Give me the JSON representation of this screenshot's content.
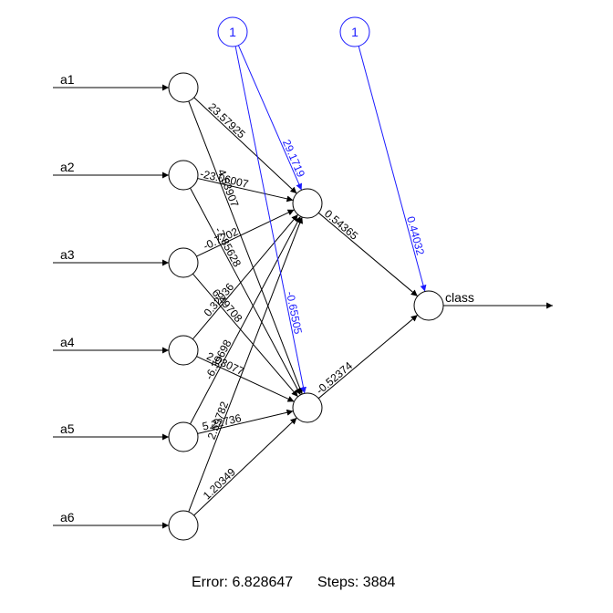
{
  "network": {
    "inputs": [
      "a1",
      "a2",
      "a3",
      "a4",
      "a5",
      "a6"
    ],
    "hidden": [
      "h1",
      "h2"
    ],
    "output": "class",
    "bias_label": "1",
    "weights_input_hidden": [
      {
        "from": "a1",
        "to": "h1",
        "label": "23.57925"
      },
      {
        "from": "a1",
        "to": "h2",
        "label": "4.53907"
      },
      {
        "from": "a2",
        "to": "h1",
        "label": "-23.06007"
      },
      {
        "from": "a2",
        "to": "h2",
        "label": "-7.85628"
      },
      {
        "from": "a3",
        "to": "h1",
        "label": "-0.7202"
      },
      {
        "from": "a3",
        "to": "h2",
        "label": "6.49708"
      },
      {
        "from": "a4",
        "to": "h1",
        "label": "0.32936"
      },
      {
        "from": "a4",
        "to": "h2",
        "label": "2.03077"
      },
      {
        "from": "a5",
        "to": "h1",
        "label": "-6.39698"
      },
      {
        "from": "a5",
        "to": "h2",
        "label": "5.22736"
      },
      {
        "from": "a6",
        "to": "h1",
        "label": "2.59782"
      },
      {
        "from": "a6",
        "to": "h2",
        "label": "1.20349"
      }
    ],
    "weights_hidden_output": [
      {
        "from": "h1",
        "label": "0.54365"
      },
      {
        "from": "h2",
        "label": "-0.52374"
      }
    ],
    "bias_weights": [
      {
        "to": "h1",
        "label": "29.1719"
      },
      {
        "to": "h2",
        "label": "-0.65505"
      },
      {
        "to": "output",
        "label": "0.44032"
      }
    ]
  },
  "footer": {
    "error_label": "Error: 6.828647",
    "steps_label": "Steps: 3884"
  },
  "colors": {
    "edge": "#000000",
    "bias": "#1a1aff",
    "node_fill": "#ffffff"
  }
}
